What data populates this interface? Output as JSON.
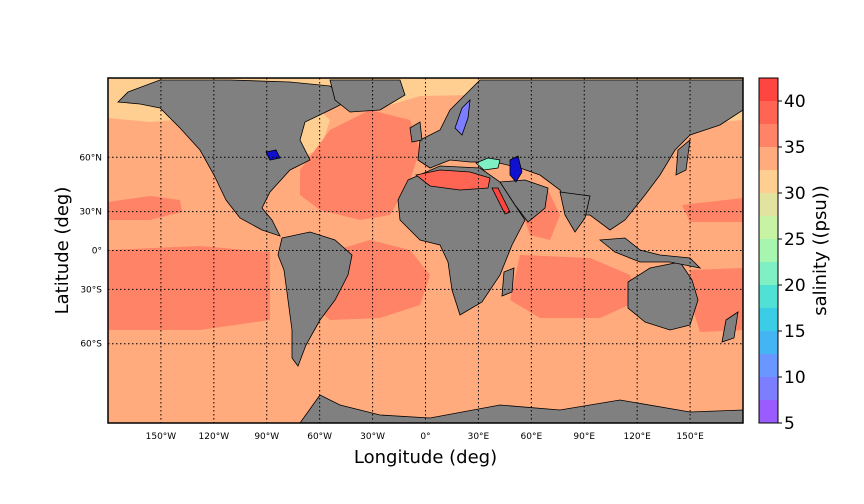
{
  "map": {
    "xlabel": "Longitude (deg)",
    "ylabel": "Latitude (deg)",
    "lon_range": [
      -180,
      180
    ],
    "lat_range": [
      -80,
      80
    ],
    "projection": "mercator",
    "graticule": "dotted",
    "lon_ticks": [
      {
        "value": -150,
        "label": "150°W"
      },
      {
        "value": -120,
        "label": "120°W"
      },
      {
        "value": -90,
        "label": "90°W"
      },
      {
        "value": -60,
        "label": "60°W"
      },
      {
        "value": -30,
        "label": "30°W"
      },
      {
        "value": 0,
        "label": "0°"
      },
      {
        "value": 30,
        "label": "30°E"
      },
      {
        "value": 60,
        "label": "60°E"
      },
      {
        "value": 90,
        "label": "90°E"
      },
      {
        "value": 120,
        "label": "120°E"
      },
      {
        "value": 150,
        "label": "150°E"
      }
    ],
    "lat_ticks": [
      {
        "value": 60,
        "label": "60°N"
      },
      {
        "value": 30,
        "label": "30°N"
      },
      {
        "value": 0,
        "label": "0°"
      },
      {
        "value": -30,
        "label": "30°S"
      },
      {
        "value": -60,
        "label": "60°S"
      }
    ],
    "land_color": "#808080",
    "ocean_base_color": "#ffab7e"
  },
  "colorbar": {
    "label": "salinity ((psu))",
    "range": [
      5,
      42.5
    ],
    "tick_labels": [
      "5",
      "10",
      "15",
      "20",
      "25",
      "30",
      "35",
      "40"
    ],
    "tick_values": [
      5,
      10,
      15,
      20,
      25,
      30,
      35,
      40
    ],
    "levels": [
      {
        "from": 5,
        "to": 7.5,
        "color": "#9b5cff"
      },
      {
        "from": 7.5,
        "to": 10,
        "color": "#7d7dff"
      },
      {
        "from": 10,
        "to": 12.5,
        "color": "#6a96ff"
      },
      {
        "from": 12.5,
        "to": 15,
        "color": "#45b4f3"
      },
      {
        "from": 15,
        "to": 17.5,
        "color": "#3ccde6"
      },
      {
        "from": 17.5,
        "to": 20,
        "color": "#50e0d4"
      },
      {
        "from": 20,
        "to": 22.5,
        "color": "#7ff0c4"
      },
      {
        "from": 22.5,
        "to": 25,
        "color": "#a6f6b0"
      },
      {
        "from": 25,
        "to": 27.5,
        "color": "#c6f3a4"
      },
      {
        "from": 27.5,
        "to": 30,
        "color": "#e3e3a0"
      },
      {
        "from": 30,
        "to": 32.5,
        "color": "#ffcf92"
      },
      {
        "from": 32.5,
        "to": 35,
        "color": "#ffab7e"
      },
      {
        "from": 35,
        "to": 37.5,
        "color": "#ff8366"
      },
      {
        "from": 37.5,
        "to": 40,
        "color": "#ff6552"
      },
      {
        "from": 40,
        "to": 42.5,
        "color": "#ff4540"
      }
    ]
  }
}
